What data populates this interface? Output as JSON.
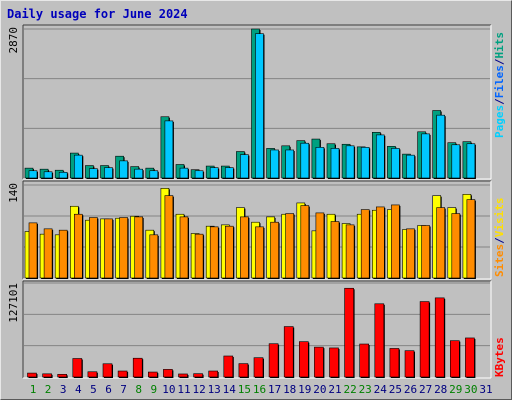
{
  "title": "Daily usage for June 2024",
  "colors": {
    "pages": "#00a080",
    "files": "#00c8ff",
    "hits": "#00a080",
    "visits": "#ffff00",
    "sites": "#ff8c00",
    "kbytes": "#ff0000",
    "day_normal": "#000080",
    "day_weekend": "#008000",
    "title": "#0000bb"
  },
  "chart_data": [
    {
      "type": "bar",
      "panel": "hits",
      "ylabel_parts": [
        {
          "text": "Pages",
          "color": "#00d0ff"
        },
        {
          "text": "/",
          "color": "#00008b"
        },
        {
          "text": "Files",
          "color": "#0064ff"
        },
        {
          "text": "/",
          "color": "#00008b"
        },
        {
          "text": "Hits",
          "color": "#00a080"
        }
      ],
      "max_label": "2870",
      "ymax": 2870,
      "grid": true,
      "categories": [
        "1",
        "2",
        "3",
        "4",
        "5",
        "6",
        "7",
        "8",
        "9",
        "10",
        "11",
        "12",
        "13",
        "14",
        "15",
        "16",
        "17",
        "18",
        "19",
        "20",
        "21",
        "22",
        "23",
        "24",
        "25",
        "26",
        "27",
        "28",
        "29",
        "30",
        "31"
      ],
      "series": [
        {
          "name": "Hits",
          "values": [
            190,
            170,
            150,
            480,
            240,
            240,
            420,
            220,
            190,
            1180,
            260,
            160,
            230,
            230,
            510,
            2870,
            570,
            620,
            720,
            750,
            660,
            650,
            600,
            880,
            610,
            460,
            890,
            1300,
            680,
            700,
            0
          ]
        },
        {
          "name": "Files",
          "values": [
            140,
            120,
            110,
            440,
            180,
            200,
            330,
            170,
            140,
            1100,
            190,
            140,
            200,
            200,
            450,
            2780,
            540,
            540,
            670,
            590,
            570,
            620,
            590,
            830,
            570,
            440,
            850,
            1210,
            640,
            660,
            0
          ]
        }
      ]
    },
    {
      "type": "bar",
      "panel": "visits",
      "ylabel_parts": [
        {
          "text": "Sites",
          "color": "#ff8c00"
        },
        {
          "text": "/",
          "color": "#00008b"
        },
        {
          "text": "Visits",
          "color": "#ffe000"
        }
      ],
      "max_label": "140",
      "ymax": 140,
      "grid": true,
      "categories": [
        "1",
        "2",
        "3",
        "4",
        "5",
        "6",
        "7",
        "8",
        "9",
        "10",
        "11",
        "12",
        "13",
        "14",
        "15",
        "16",
        "17",
        "18",
        "19",
        "20",
        "21",
        "22",
        "23",
        "24",
        "25",
        "26",
        "27",
        "28",
        "29",
        "30",
        "31"
      ],
      "series": [
        {
          "name": "Visits",
          "values": [
            70,
            66,
            65,
            108,
            87,
            89,
            90,
            93,
            72,
            135,
            96,
            67,
            78,
            80,
            106,
            84,
            92,
            96,
            113,
            71,
            96,
            82,
            96,
            102,
            103,
            73,
            79,
            124,
            106,
            126,
            0
          ]
        },
        {
          "name": "Sites",
          "values": [
            83,
            74,
            72,
            96,
            91,
            89,
            91,
            92,
            65,
            124,
            92,
            66,
            77,
            78,
            92,
            77,
            84,
            97,
            109,
            98,
            85,
            80,
            103,
            107,
            110,
            74,
            79,
            106,
            97,
            118,
            0
          ]
        }
      ]
    },
    {
      "type": "bar",
      "panel": "kbytes",
      "ylabel_parts": [
        {
          "text": "KBytes",
          "color": "#ff0000"
        }
      ],
      "max_label": "127101",
      "ymax": 127101,
      "grid": true,
      "categories": [
        "1",
        "2",
        "3",
        "4",
        "5",
        "6",
        "7",
        "8",
        "9",
        "10",
        "11",
        "12",
        "13",
        "14",
        "15",
        "16",
        "17",
        "18",
        "19",
        "20",
        "21",
        "22",
        "23",
        "24",
        "25",
        "26",
        "27",
        "28",
        "29",
        "30",
        "31"
      ],
      "series": [
        {
          "name": "KBytes",
          "values": [
            5300,
            4300,
            3600,
            25000,
            7100,
            17900,
            8100,
            25400,
            6700,
            10300,
            4100,
            4500,
            8100,
            28400,
            18100,
            26100,
            45000,
            68200,
            47800,
            40400,
            39300,
            120000,
            44600,
            99000,
            38600,
            35600,
            102000,
            107000,
            49100,
            52800,
            0
          ]
        }
      ]
    }
  ],
  "days": [
    "1",
    "2",
    "3",
    "4",
    "5",
    "6",
    "7",
    "8",
    "9",
    "10",
    "11",
    "12",
    "13",
    "14",
    "15",
    "16",
    "17",
    "18",
    "19",
    "20",
    "21",
    "22",
    "23",
    "24",
    "25",
    "26",
    "27",
    "28",
    "29",
    "30",
    "31"
  ],
  "weekend_days": [
    1,
    2,
    8,
    9,
    15,
    16,
    22,
    23,
    29,
    30
  ]
}
